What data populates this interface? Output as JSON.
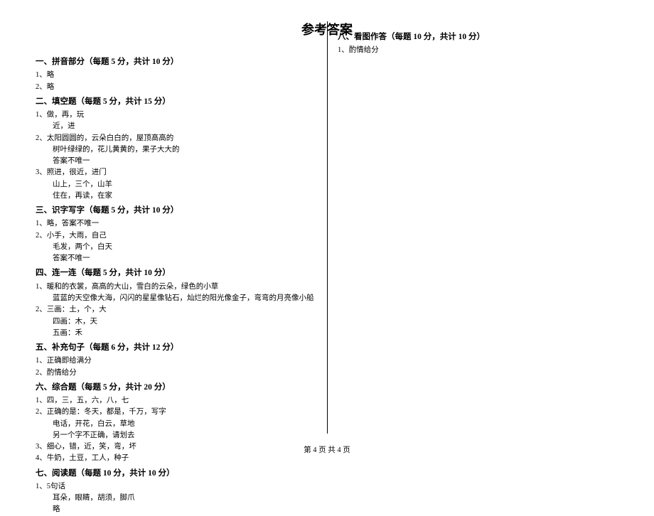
{
  "title": "参考答案",
  "footer": "第 4 页 共 4 页",
  "sections": {
    "s1": {
      "header": "一、拼音部分（每题 5 分，共计 10 分）",
      "items": [
        {
          "num": "1、",
          "text": "略"
        },
        {
          "num": "2、",
          "text": "略"
        }
      ]
    },
    "s2": {
      "header": "二、填空题（每题 5 分，共计 15 分）",
      "items": [
        {
          "num": "1、",
          "text": "做，再，玩",
          "subs": [
            "近，进"
          ]
        },
        {
          "num": "2、",
          "text": "太阳圆圆的，云朵白白的，屋顶高高的",
          "subs": [
            "树叶绿绿的，花儿黄黄的，果子大大的",
            "答案不唯一"
          ]
        },
        {
          "num": "3、",
          "text": "照进，很近，进门",
          "subs": [
            "山上，三个，山羊",
            "住在，再读，在家"
          ]
        }
      ]
    },
    "s3": {
      "header": "三、识字写字（每题 5 分，共计 10 分）",
      "items": [
        {
          "num": "1、",
          "text": "略，答案不唯一"
        },
        {
          "num": "2、",
          "text": "小手，大雨，自己",
          "subs": [
            "毛发，两个，白天",
            "答案不唯一"
          ]
        }
      ]
    },
    "s4": {
      "header": "四、连一连（每题 5 分，共计 10 分）",
      "items": [
        {
          "num": "1、",
          "text": "暖和的衣裳，高高的大山，雪白的云朵，绿色的小草",
          "subs": [
            "蓝蓝的天空像大海，闪闪的星星像钻石，灿烂的阳光像金子，弯弯的月亮像小船"
          ]
        },
        {
          "num": "2、",
          "text": "三画：土，个，大",
          "subs": [
            "四画：木，天",
            "五画：禾"
          ]
        }
      ]
    },
    "s5": {
      "header": "五、补充句子（每题 6 分，共计 12 分）",
      "items": [
        {
          "num": "1、",
          "text": "正确即给满分"
        },
        {
          "num": "2、",
          "text": "酌情给分"
        }
      ]
    },
    "s6": {
      "header": "六、综合题（每题 5 分，共计 20 分）",
      "items": [
        {
          "num": "1、",
          "text": "四，三，五，六，八，七"
        },
        {
          "num": "2、",
          "text": "正确的是：冬天，都是，千万，写字",
          "subs": [
            "电话，开花，白云，草地",
            "另一个字不正确，请划去"
          ]
        },
        {
          "num": "3、",
          "text": "细心，错，近，笑，弯，坏"
        },
        {
          "num": "4、",
          "text": "牛奶，土豆，工人，种子"
        }
      ]
    },
    "s7": {
      "header": "七、阅读题（每题 10 分，共计 10 分）",
      "items": [
        {
          "num": "1、",
          "text": "5句话",
          "subs": [
            "耳朵，眼睛，胡须，脚爪",
            "略"
          ]
        }
      ]
    },
    "s8": {
      "header": "八、看图作答（每题 10 分，共计 10 分）",
      "items": [
        {
          "num": "1、",
          "text": "酌情给分"
        }
      ]
    }
  }
}
